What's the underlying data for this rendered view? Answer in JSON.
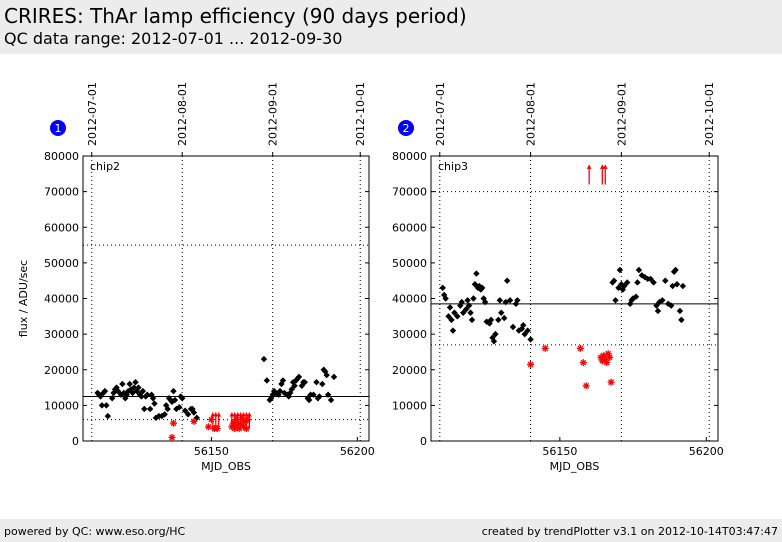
{
  "header": {
    "title": "CRIRES: ThAr lamp efficiency (90 days period)",
    "subtitle": "QC data range: 2012-07-01 ... 2012-09-30"
  },
  "footer": {
    "left": "powered by QC: www.eso.org/HC",
    "right": "created by trendPlotter v3.1 on 2012-10-14T03:47:47"
  },
  "colors": {
    "ok": "#000000",
    "outlier": "#ff0000",
    "badge": "#0000ff"
  },
  "chart_data": [
    {
      "type": "scatter",
      "badge": "1",
      "panel_label": "chip2",
      "xlabel": "MJD_OBS",
      "ylabel": "flux / ADU/sec",
      "xlim": [
        56106,
        56204
      ],
      "ylim": [
        0,
        80000
      ],
      "xticks": [
        56150,
        56200
      ],
      "xtick_labels": [
        "56150",
        "56200"
      ],
      "yticks": [
        0,
        10000,
        20000,
        30000,
        40000,
        50000,
        60000,
        70000,
        80000
      ],
      "ytick_labels": [
        "0",
        "10000",
        "20000",
        "30000",
        "40000",
        "50000",
        "60000",
        "70000",
        "80000"
      ],
      "date_ticks": [
        {
          "mjd": 56109,
          "label": "2012-07-01"
        },
        {
          "mjd": 56140,
          "label": "2012-08-01"
        },
        {
          "mjd": 56171,
          "label": "2012-09-01"
        },
        {
          "mjd": 56201,
          "label": "2012-10-01"
        }
      ],
      "reference_line": 12500,
      "threshold_lines": [
        6000,
        55000
      ],
      "ok_points": [
        [
          56111,
          13500
        ],
        [
          56111.5,
          13000
        ],
        [
          56112,
          12500
        ],
        [
          56112.5,
          10000
        ],
        [
          56113,
          13500
        ],
        [
          56113.5,
          14000
        ],
        [
          56114,
          10000
        ],
        [
          56114.5,
          7000
        ],
        [
          56116,
          12000
        ],
        [
          56116.5,
          13500
        ],
        [
          56117,
          14500
        ],
        [
          56117.5,
          15000
        ],
        [
          56118,
          14000
        ],
        [
          56119,
          13000
        ],
        [
          56119.5,
          16000
        ],
        [
          56120,
          13500
        ],
        [
          56120.5,
          12000
        ],
        [
          56121,
          13000
        ],
        [
          56121.5,
          14000
        ],
        [
          56122,
          16000
        ],
        [
          56122.5,
          14500
        ],
        [
          56123,
          13500
        ],
        [
          56123.5,
          15000
        ],
        [
          56124,
          16500
        ],
        [
          56124.5,
          14000
        ],
        [
          56125,
          15000
        ],
        [
          56125.5,
          13000
        ],
        [
          56126,
          12500
        ],
        [
          56126.5,
          14000
        ],
        [
          56127,
          9000
        ],
        [
          56127.5,
          12500
        ],
        [
          56128,
          13000
        ],
        [
          56129,
          9000
        ],
        [
          56129.5,
          13000
        ],
        [
          56130,
          12000
        ],
        [
          56130.5,
          10500
        ],
        [
          56131,
          6500
        ],
        [
          56132,
          7000
        ],
        [
          56133,
          7000
        ],
        [
          56134,
          7500
        ],
        [
          56134.5,
          10000
        ],
        [
          56135,
          9000
        ],
        [
          56135.5,
          12000
        ],
        [
          56136,
          11500
        ],
        [
          56136.5,
          11000
        ],
        [
          56137,
          14000
        ],
        [
          56137.5,
          11500
        ],
        [
          56138,
          9000
        ],
        [
          56139,
          9500
        ],
        [
          56139.5,
          12500
        ],
        [
          56140,
          12000
        ],
        [
          56141,
          8500
        ],
        [
          56142,
          7500
        ],
        [
          56143,
          9000
        ],
        [
          56143.5,
          9000
        ],
        [
          56144,
          8000
        ],
        [
          56145,
          6500
        ],
        [
          56168,
          23000
        ],
        [
          56169,
          17000
        ],
        [
          56170,
          11500
        ],
        [
          56170.5,
          12000
        ],
        [
          56171,
          13000
        ],
        [
          56171.5,
          14000
        ],
        [
          56172,
          13500
        ],
        [
          56173,
          13000
        ],
        [
          56173.5,
          14000
        ],
        [
          56174,
          16000
        ],
        [
          56174.5,
          17000
        ],
        [
          56175,
          13500
        ],
        [
          56176,
          13000
        ],
        [
          56176.5,
          12500
        ],
        [
          56177,
          13500
        ],
        [
          56177.5,
          14500
        ],
        [
          56178,
          16500
        ],
        [
          56178.5,
          15500
        ],
        [
          56179,
          17000
        ],
        [
          56179.5,
          17500
        ],
        [
          56180,
          18000
        ],
        [
          56181,
          15500
        ],
        [
          56181.5,
          16500
        ],
        [
          56182,
          16500
        ],
        [
          56183,
          12000
        ],
        [
          56183.5,
          11500
        ],
        [
          56184,
          13000
        ],
        [
          56185,
          13000
        ],
        [
          56186,
          16500
        ],
        [
          56186.5,
          12000
        ],
        [
          56187,
          12500
        ],
        [
          56188,
          16000
        ],
        [
          56188.5,
          20000
        ],
        [
          56189,
          19500
        ],
        [
          56189.5,
          18500
        ],
        [
          56190,
          13000
        ],
        [
          56191,
          11500
        ],
        [
          56192,
          18000
        ]
      ],
      "outlier_points": [
        [
          56137,
          5000
        ],
        [
          56136.5,
          1000
        ],
        [
          56144,
          5500
        ],
        [
          56149,
          4000
        ],
        [
          56150,
          6000
        ],
        [
          56151,
          3500
        ],
        [
          56152,
          3500
        ],
        [
          56157,
          4000
        ],
        [
          56157.5,
          5000
        ],
        [
          56158,
          3500
        ],
        [
          56158.5,
          6000
        ],
        [
          56159,
          4500
        ],
        [
          56159.5,
          3500
        ],
        [
          56160,
          5000
        ],
        [
          56160.5,
          6500
        ],
        [
          56161,
          4000
        ],
        [
          56161.5,
          5500
        ],
        [
          56162,
          3500
        ],
        [
          56162.5,
          6000
        ]
      ],
      "outlier_arrows": [
        56150.5,
        56151.5,
        56152.5,
        56157,
        56158,
        56159,
        56160,
        56161,
        56162,
        56163
      ]
    },
    {
      "type": "scatter",
      "badge": "2",
      "panel_label": "chip3",
      "xlabel": "MJD_OBS",
      "ylabel": "",
      "xlim": [
        56106,
        56204
      ],
      "ylim": [
        0,
        80000
      ],
      "xticks": [
        56150,
        56200
      ],
      "xtick_labels": [
        "56150",
        "56200"
      ],
      "yticks": [
        0,
        10000,
        20000,
        30000,
        40000,
        50000,
        60000,
        70000,
        80000
      ],
      "ytick_labels": [
        "0",
        "10000",
        "20000",
        "30000",
        "40000",
        "50000",
        "60000",
        "70000",
        "80000"
      ],
      "date_ticks": [
        {
          "mjd": 56109,
          "label": "2012-07-01"
        },
        {
          "mjd": 56140,
          "label": "2012-08-01"
        },
        {
          "mjd": 56171,
          "label": "2012-09-01"
        },
        {
          "mjd": 56201,
          "label": "2012-10-01"
        }
      ],
      "reference_line": 38500,
      "threshold_lines": [
        27000,
        70000
      ],
      "ok_points": [
        [
          56110,
          43000
        ],
        [
          56110.5,
          41000
        ],
        [
          56111,
          40000
        ],
        [
          56112,
          35000
        ],
        [
          56112.5,
          37500
        ],
        [
          56113,
          34000
        ],
        [
          56113.5,
          31000
        ],
        [
          56114,
          36000
        ],
        [
          56115,
          35000
        ],
        [
          56116,
          38000
        ],
        [
          56116.5,
          39000
        ],
        [
          56117,
          36000
        ],
        [
          56118,
          37000
        ],
        [
          56118.5,
          39500
        ],
        [
          56119,
          38000
        ],
        [
          56119.5,
          36000
        ],
        [
          56120,
          34000
        ],
        [
          56120.5,
          40000
        ],
        [
          56121,
          44000
        ],
        [
          56121.5,
          47000
        ],
        [
          56122,
          43000
        ],
        [
          56122.5,
          43500
        ],
        [
          56123,
          42500
        ],
        [
          56123.5,
          43000
        ],
        [
          56124,
          40000
        ],
        [
          56124.5,
          39000
        ],
        [
          56125,
          33500
        ],
        [
          56126,
          33000
        ],
        [
          56126.5,
          34000
        ],
        [
          56127,
          29000
        ],
        [
          56127.5,
          28000
        ],
        [
          56128,
          30000
        ],
        [
          56129,
          34000
        ],
        [
          56129.5,
          39500
        ],
        [
          56130,
          36000
        ],
        [
          56131,
          34500
        ],
        [
          56131.5,
          39000
        ],
        [
          56132,
          45000
        ],
        [
          56133,
          39500
        ],
        [
          56134,
          32000
        ],
        [
          56135,
          38500
        ],
        [
          56135.5,
          39500
        ],
        [
          56136,
          31000
        ],
        [
          56137,
          31500
        ],
        [
          56137.5,
          32500
        ],
        [
          56138,
          30000
        ],
        [
          56139,
          31000
        ],
        [
          56140,
          28500
        ],
        [
          56168,
          44500
        ],
        [
          56168.5,
          45000
        ],
        [
          56169,
          39500
        ],
        [
          56170,
          43000
        ],
        [
          56170.5,
          48000
        ],
        [
          56171,
          44000
        ],
        [
          56171.5,
          42500
        ],
        [
          56172,
          43500
        ],
        [
          56173,
          44500
        ],
        [
          56174,
          38500
        ],
        [
          56174.5,
          39500
        ],
        [
          56175,
          40000
        ],
        [
          56176,
          40500
        ],
        [
          56176.5,
          44500
        ],
        [
          56177,
          48000
        ],
        [
          56178,
          46500
        ],
        [
          56179,
          46000
        ],
        [
          56180,
          45500
        ],
        [
          56181,
          45500
        ],
        [
          56182,
          44500
        ],
        [
          56183,
          38000
        ],
        [
          56183.5,
          36500
        ],
        [
          56184,
          39000
        ],
        [
          56185,
          39500
        ],
        [
          56186,
          45000
        ],
        [
          56187,
          38500
        ],
        [
          56188,
          38000
        ],
        [
          56188.5,
          43500
        ],
        [
          56189,
          47500
        ],
        [
          56189.5,
          48000
        ],
        [
          56190,
          44000
        ],
        [
          56191,
          36500
        ],
        [
          56191.5,
          34000
        ],
        [
          56192,
          43500
        ]
      ],
      "outlier_points": [
        [
          56140,
          21500
        ],
        [
          56145,
          26000
        ],
        [
          56157,
          26000
        ],
        [
          56158,
          22000
        ],
        [
          56159,
          15500
        ],
        [
          56164,
          23500
        ],
        [
          56164.5,
          22500
        ],
        [
          56165,
          24000
        ],
        [
          56165.5,
          23000
        ],
        [
          56166,
          22000
        ],
        [
          56166.5,
          24500
        ],
        [
          56167,
          23500
        ],
        [
          56167.5,
          16500
        ]
      ],
      "outlier_arrows": [
        56160,
        56164.5,
        56165.5
      ]
    }
  ]
}
